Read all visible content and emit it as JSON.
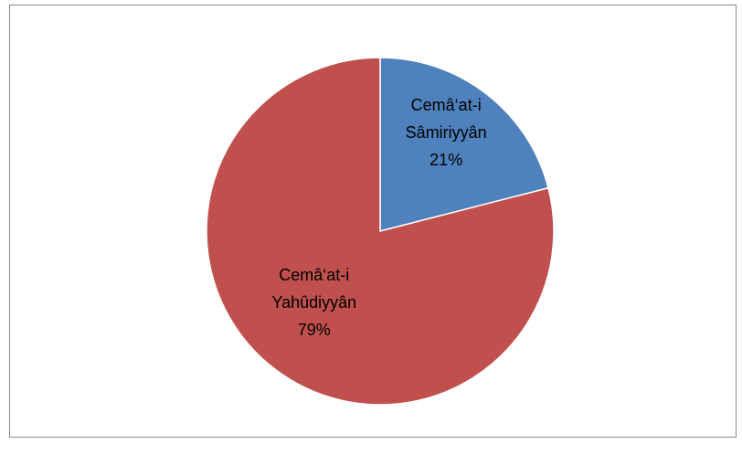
{
  "chart_data": {
    "type": "pie",
    "categories": [
      "Cemâ‘at-i Sâmiriyyân",
      "Cemâ‘at-i Yahûdiyyân"
    ],
    "values": [
      21,
      79
    ],
    "value_labels": [
      "21%",
      "79%"
    ],
    "colors": [
      "#4f81bd",
      "#c0504d"
    ]
  }
}
